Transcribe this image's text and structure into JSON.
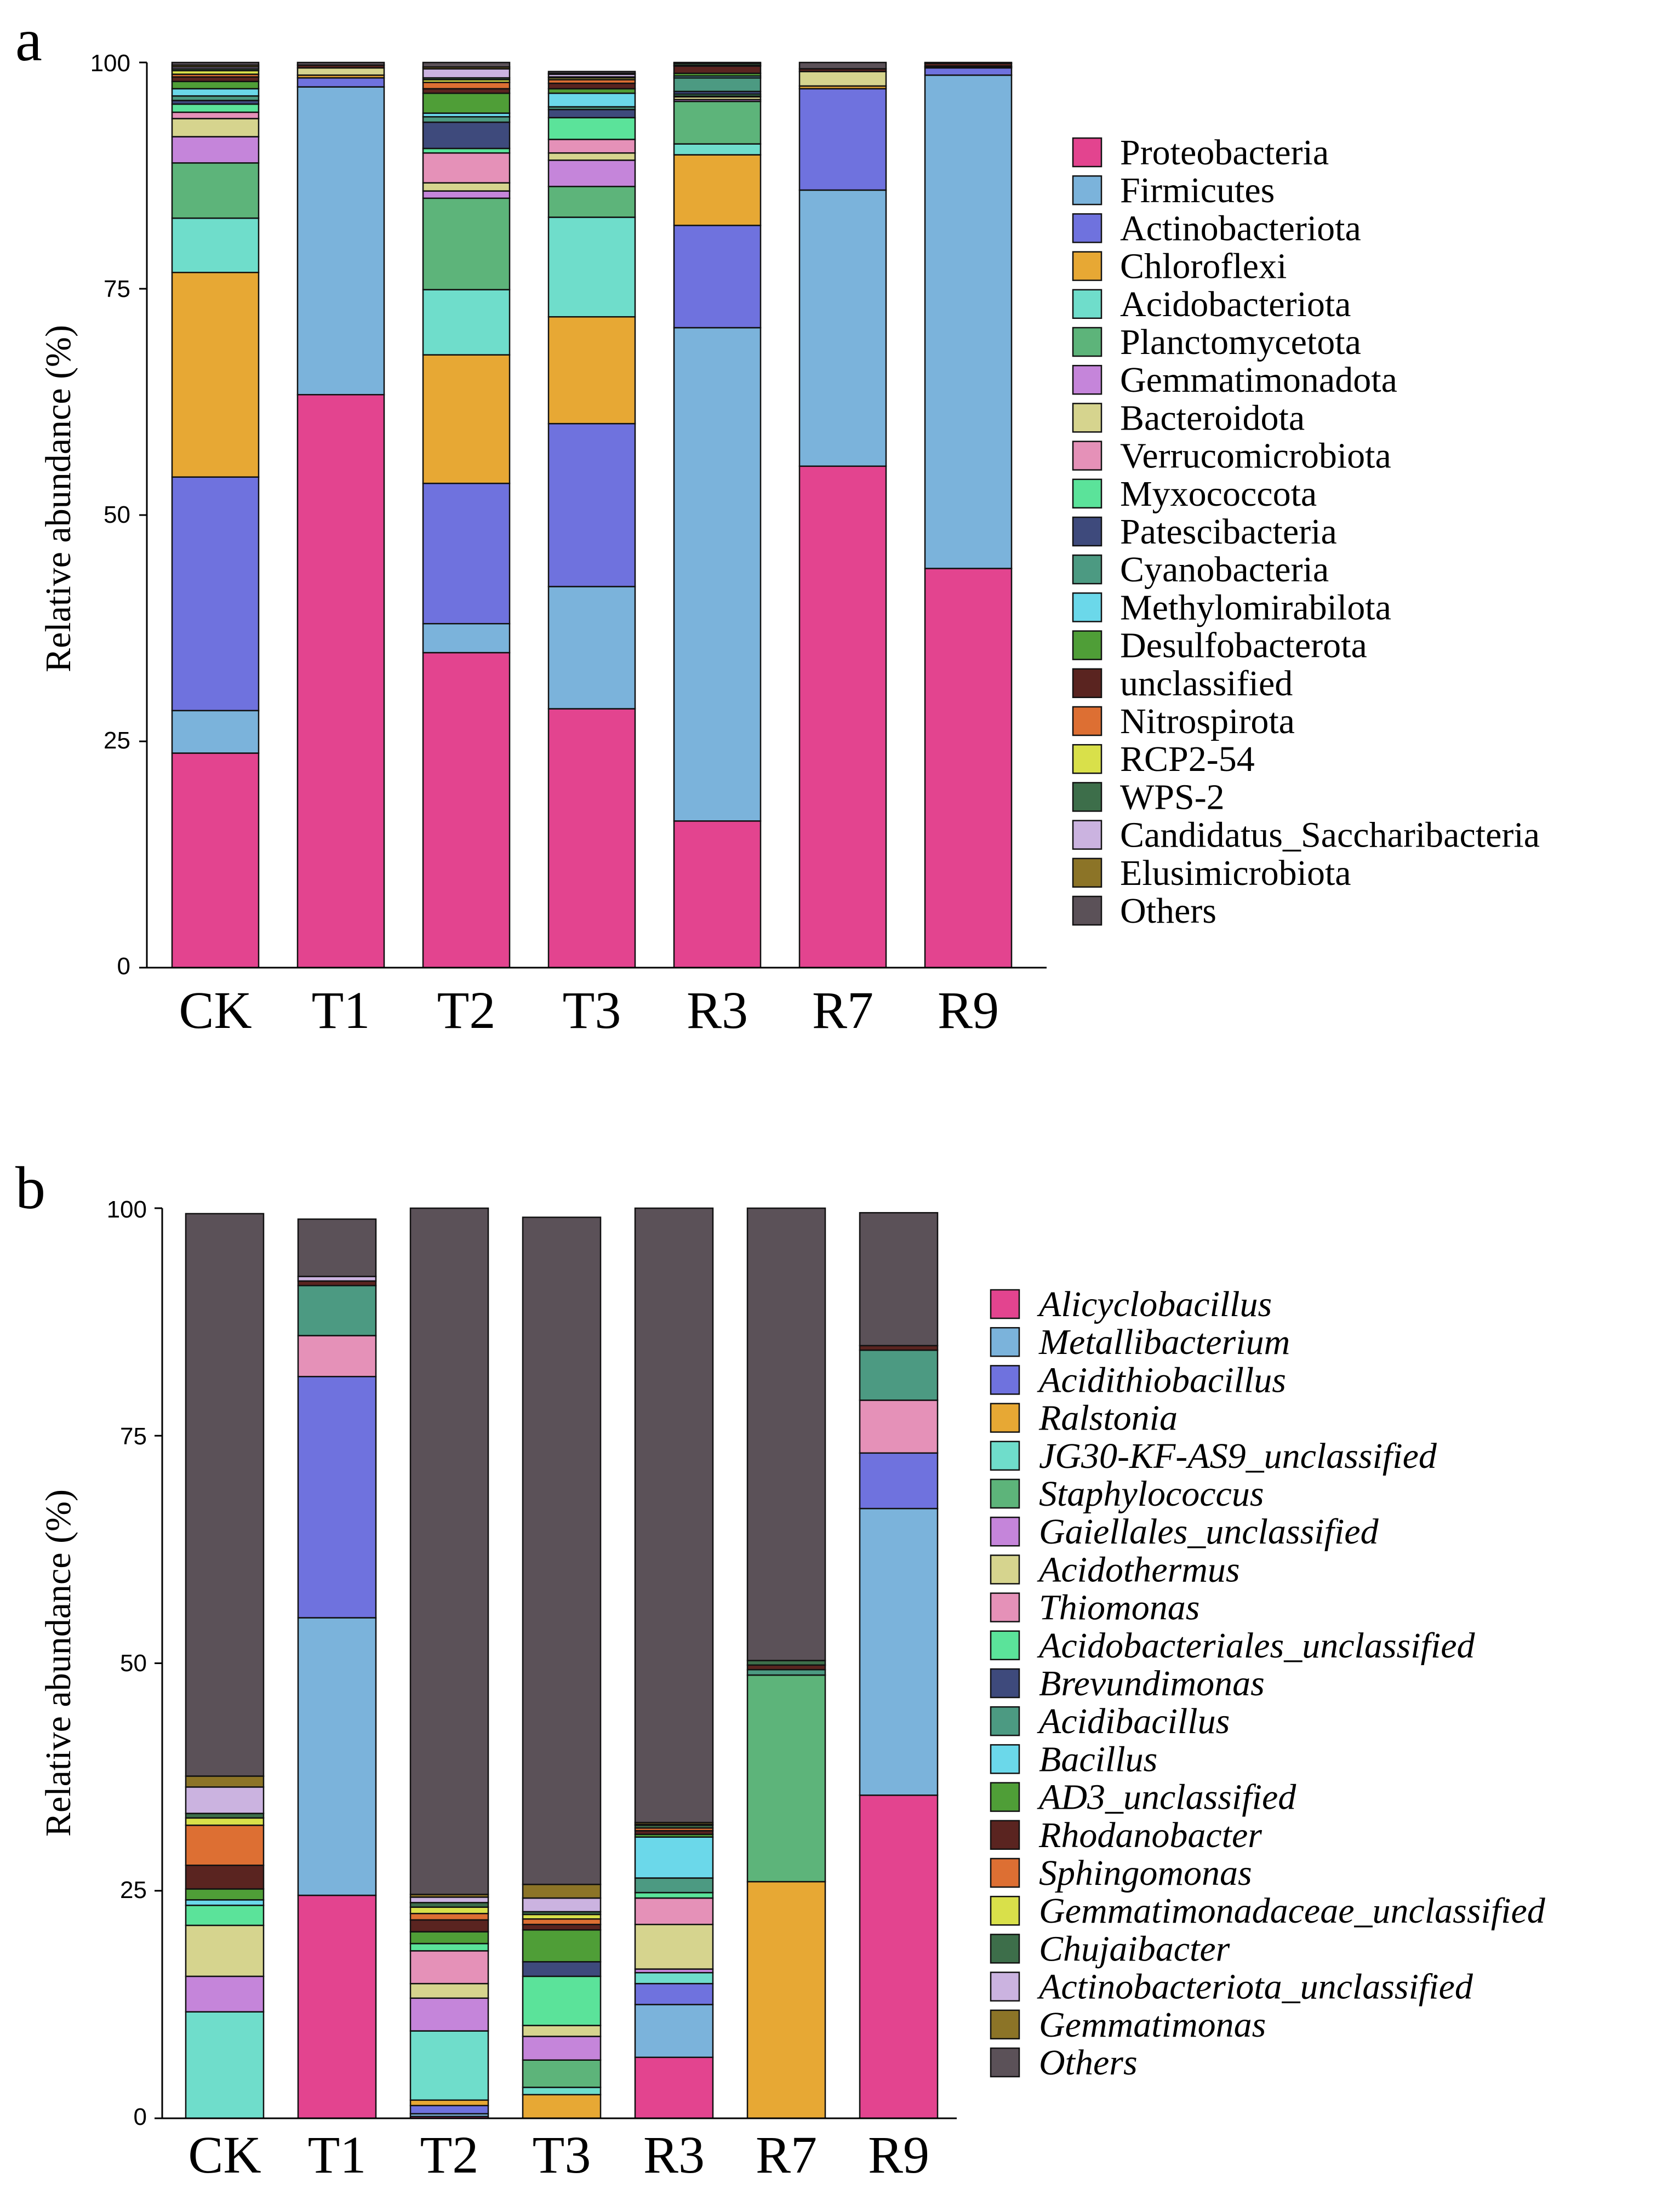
{
  "chart_data": [
    {
      "panel": "a",
      "type": "bar",
      "stacked": true,
      "ylabel": "Relative abundance (%)",
      "xlabel": "",
      "ylim": [
        0,
        100
      ],
      "yticks": [
        "0",
        "25",
        "50",
        "75",
        "100"
      ],
      "categories": [
        "CK",
        "T1",
        "T2",
        "T3",
        "R3",
        "R7",
        "R9"
      ],
      "legend_position": "right",
      "series": [
        {
          "name": "Proteobacteria",
          "color": "#E3448F",
          "values": [
            23.7,
            63.3,
            34.8,
            28.6,
            16.2,
            55.4,
            44.1
          ]
        },
        {
          "name": "Firmicutes",
          "color": "#7BB3DB",
          "values": [
            4.7,
            34.0,
            3.2,
            13.5,
            54.5,
            30.5,
            54.5
          ]
        },
        {
          "name": "Actinobacteriota",
          "color": "#6F72DE",
          "values": [
            25.8,
            1.0,
            15.5,
            18.0,
            11.3,
            11.2,
            0.8
          ]
        },
        {
          "name": "Chloroflexi",
          "color": "#E7A834",
          "values": [
            22.6,
            0.3,
            14.2,
            11.8,
            7.8,
            0.3,
            0.1
          ]
        },
        {
          "name": "Acidobacteriota",
          "color": "#6FDDCB",
          "values": [
            6.0,
            0.0,
            7.2,
            11.0,
            1.2,
            0.0,
            0.0
          ]
        },
        {
          "name": "Planctomycetota",
          "color": "#5DB47A",
          "values": [
            6.1,
            0.0,
            10.1,
            3.4,
            4.7,
            0.0,
            0.0
          ]
        },
        {
          "name": "Gemmatimonadota",
          "color": "#C585DA",
          "values": [
            2.9,
            0.0,
            0.8,
            2.9,
            0.2,
            0.0,
            0.0
          ]
        },
        {
          "name": "Bacteroidota",
          "color": "#D6D48E",
          "values": [
            2.0,
            0.8,
            0.9,
            0.8,
            0.3,
            1.6,
            0.1
          ]
        },
        {
          "name": "Verrucomicrobiota",
          "color": "#E591B8",
          "values": [
            0.7,
            0.0,
            3.3,
            1.5,
            0.1,
            0.0,
            0.0
          ]
        },
        {
          "name": "Myxococcota",
          "color": "#5BE39A",
          "values": [
            0.9,
            0.0,
            0.5,
            2.4,
            0.2,
            0.0,
            0.0
          ]
        },
        {
          "name": "Patescibacteria",
          "color": "#3E4A7C",
          "values": [
            0.4,
            0.0,
            2.9,
            0.9,
            0.3,
            0.0,
            0.0
          ]
        },
        {
          "name": "Cyanobacteria",
          "color": "#4C9A82",
          "values": [
            0.5,
            0.0,
            0.6,
            0.3,
            1.5,
            0.0,
            0.0
          ]
        },
        {
          "name": "Methylomirabilota",
          "color": "#6BD8EA",
          "values": [
            0.8,
            0.0,
            0.4,
            1.5,
            0.2,
            0.0,
            0.0
          ]
        },
        {
          "name": "Desulfobacterota",
          "color": "#4F9E37",
          "values": [
            0.8,
            0.0,
            2.2,
            0.5,
            0.3,
            0.0,
            0.0
          ]
        },
        {
          "name": "unclassified",
          "color": "#5A2420",
          "values": [
            0.5,
            0.3,
            0.5,
            0.6,
            0.8,
            0.3,
            0.3
          ]
        },
        {
          "name": "Nitrospirota",
          "color": "#DD6F33",
          "values": [
            0.3,
            0.0,
            0.7,
            0.4,
            0.1,
            0.0,
            0.0
          ]
        },
        {
          "name": "RCP2-54",
          "color": "#D9E04A",
          "values": [
            0.4,
            0.0,
            0.3,
            0.2,
            0.0,
            0.0,
            0.0
          ]
        },
        {
          "name": "WPS-2",
          "color": "#3D6E4A",
          "values": [
            0.2,
            0.0,
            0.2,
            0.1,
            0.2,
            0.0,
            0.0
          ]
        },
        {
          "name": "Candidatus_Saccharibacteria",
          "color": "#CBB3E0",
          "values": [
            0.2,
            0.0,
            1.0,
            0.3,
            0.0,
            0.0,
            0.0
          ]
        },
        {
          "name": "Elusimicrobiota",
          "color": "#8C7427",
          "values": [
            0.2,
            0.0,
            0.2,
            0.1,
            0.0,
            0.0,
            0.0
          ]
        },
        {
          "name": "Others",
          "color": "#5B5158",
          "values": [
            0.3,
            0.3,
            0.5,
            0.2,
            0.2,
            0.7,
            0.1
          ]
        }
      ]
    },
    {
      "panel": "b",
      "type": "bar",
      "stacked": true,
      "ylabel": "Relative abundance (%)",
      "xlabel": "",
      "ylim": [
        0,
        100
      ],
      "yticks": [
        "0",
        "25",
        "50",
        "75",
        "100"
      ],
      "categories": [
        "CK",
        "T1",
        "T2",
        "T3",
        "R3",
        "R7",
        "R9"
      ],
      "legend_position": "right",
      "series": [
        {
          "name": "Alicyclobacillus",
          "color": "#E3448F",
          "values": [
            0.0,
            24.5,
            0.2,
            0.0,
            6.7,
            0.0,
            35.5
          ]
        },
        {
          "name": "Metallibacterium",
          "color": "#7BB3DB",
          "values": [
            0.0,
            30.5,
            0.3,
            0.0,
            5.8,
            0.0,
            31.5
          ]
        },
        {
          "name": "Acidithiobacillus",
          "color": "#6F72DE",
          "values": [
            0.0,
            26.5,
            0.9,
            0.0,
            2.3,
            0.0,
            6.1
          ]
        },
        {
          "name": "Ralstonia",
          "color": "#E7A834",
          "values": [
            0.0,
            0.0,
            0.6,
            2.6,
            0.0,
            26.0,
            0.0
          ]
        },
        {
          "name": "JG30-KF-AS9_unclassified",
          "color": "#6FDDCB",
          "values": [
            11.7,
            0.0,
            7.6,
            0.8,
            1.2,
            0.0,
            0.0
          ]
        },
        {
          "name": "Staphylococcus",
          "color": "#5DB47A",
          "values": [
            0.0,
            0.0,
            0.0,
            3.0,
            0.0,
            22.7,
            0.0
          ]
        },
        {
          "name": "Gaiellales_unclassified",
          "color": "#C585DA",
          "values": [
            3.9,
            0.0,
            3.6,
            2.6,
            0.4,
            0.0,
            0.0
          ]
        },
        {
          "name": "Acidothermus",
          "color": "#D6D48E",
          "values": [
            5.6,
            0.0,
            1.6,
            1.2,
            4.9,
            0.0,
            0.0
          ]
        },
        {
          "name": "Thiomonas",
          "color": "#E591B8",
          "values": [
            0.0,
            4.5,
            3.6,
            0.0,
            2.9,
            0.0,
            5.8
          ]
        },
        {
          "name": "Acidobacteriales_unclassified",
          "color": "#5BE39A",
          "values": [
            2.2,
            0.0,
            0.8,
            5.4,
            0.6,
            0.0,
            0.0
          ]
        },
        {
          "name": "Brevundimonas",
          "color": "#3E4A7C",
          "values": [
            0.0,
            0.0,
            0.0,
            1.6,
            0.0,
            0.0,
            0.0
          ]
        },
        {
          "name": "Acidibacillus",
          "color": "#4C9A82",
          "values": [
            0.0,
            5.5,
            0.0,
            0.0,
            1.6,
            0.6,
            5.5
          ]
        },
        {
          "name": "Bacillus",
          "color": "#6BD8EA",
          "values": [
            0.6,
            0.0,
            0.0,
            0.0,
            4.5,
            0.0,
            0.0
          ]
        },
        {
          "name": "AD3_unclassified",
          "color": "#4F9E37",
          "values": [
            1.2,
            0.0,
            1.3,
            3.5,
            0.3,
            0.0,
            0.0
          ]
        },
        {
          "name": "Rhodanobacter",
          "color": "#5A2420",
          "values": [
            2.6,
            0.5,
            1.3,
            0.6,
            0.4,
            0.5,
            0.5
          ]
        },
        {
          "name": "Sphingomonas",
          "color": "#DD6F33",
          "values": [
            4.4,
            0.0,
            0.7,
            0.6,
            0.3,
            0.0,
            0.0
          ]
        },
        {
          "name": "Gemmatimonadaceae_unclassified",
          "color": "#D9E04A",
          "values": [
            0.8,
            0.0,
            0.7,
            0.5,
            0.0,
            0.0,
            0.0
          ]
        },
        {
          "name": "Chujaibacter",
          "color": "#3D6E4A",
          "values": [
            0.5,
            0.0,
            0.5,
            0.3,
            0.3,
            0.5,
            0.0
          ]
        },
        {
          "name": "Actinobacteriota_unclassified",
          "color": "#CBB3E0",
          "values": [
            2.9,
            0.5,
            0.6,
            1.5,
            0.1,
            0.0,
            0.0
          ]
        },
        {
          "name": "Gemmatimonas",
          "color": "#8C7427",
          "values": [
            1.2,
            0.0,
            0.3,
            1.5,
            0.2,
            0.0,
            0.0
          ]
        },
        {
          "name": "Others",
          "color": "#5B5158",
          "values": [
            61.8,
            6.3,
            75.4,
            73.3,
            67.5,
            49.7,
            14.6
          ]
        }
      ]
    }
  ],
  "panel_letters": {
    "a": "a",
    "b": "b"
  }
}
